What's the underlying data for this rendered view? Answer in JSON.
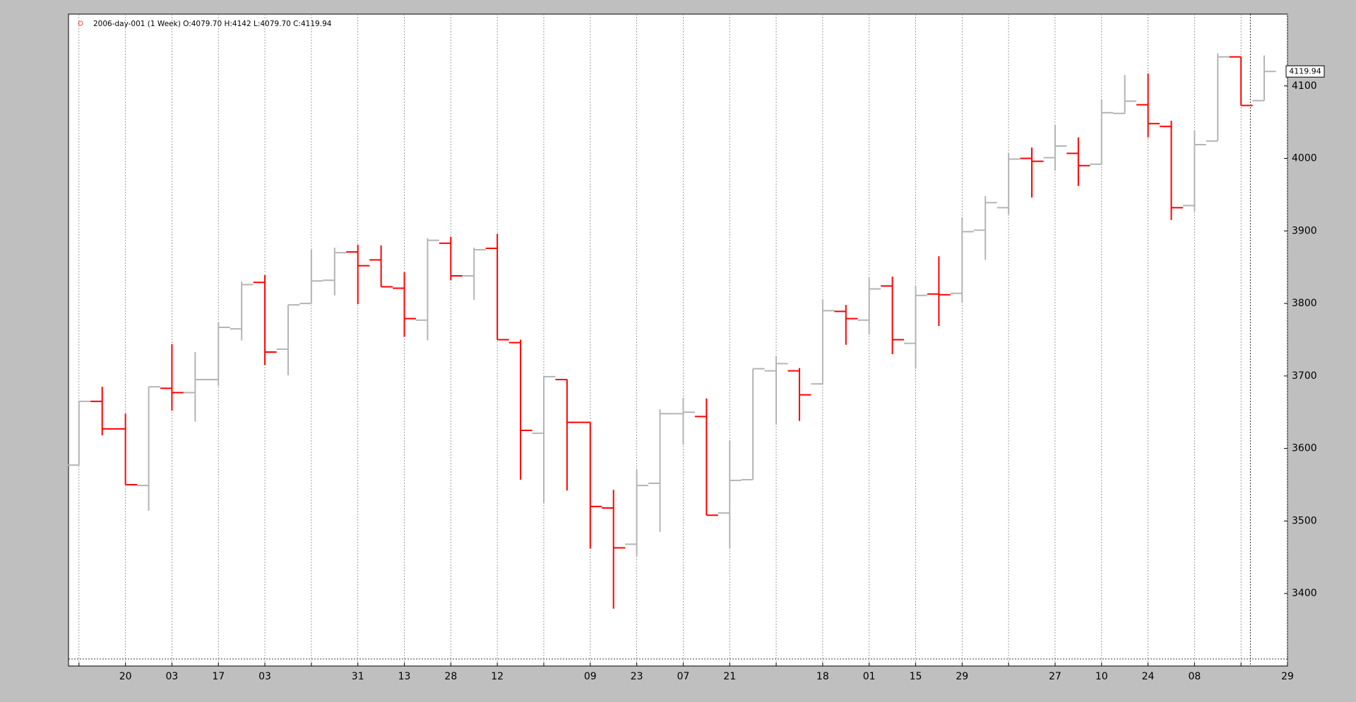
{
  "chart_data": {
    "type": "ohlc",
    "title": "2006-day-001 (1 Week) O:4079.70 H:4142 L:4079.70 C:4119.94",
    "open": [
      3577,
      3665,
      3627,
      3549,
      3683,
      3677,
      3695,
      3765,
      3829,
      3737,
      3800,
      3832,
      3871,
      3860,
      3821,
      3777,
      3883,
      3838,
      3876,
      3746,
      3621,
      3695,
      3636,
      3518,
      3468,
      3552,
      3648,
      3644,
      3511,
      3557,
      3707,
      3707,
      3689,
      3789,
      3777,
      3824,
      3745,
      3813,
      3814,
      3901,
      3932,
      4000,
      4001,
      4007,
      3992,
      4062,
      4074,
      4044,
      3935,
      4024,
      4140,
      4079.7
    ],
    "high": [
      3666,
      3685,
      3648,
      3685,
      3744,
      3733,
      3774,
      3830,
      3839,
      3798,
      3874,
      3877,
      3881,
      3880,
      3843,
      3890,
      3892,
      3877,
      3896,
      3750,
      3699,
      3695,
      3636,
      3543,
      3571,
      3654,
      3670,
      3669,
      3611,
      3710,
      3727,
      3711,
      3806,
      3798,
      3835,
      3837,
      3824,
      3865,
      3919,
      3948,
      4007,
      4015,
      4046,
      4029,
      4081,
      4115,
      4117,
      4052,
      4038,
      4145,
      4140,
      4142
    ],
    "low": [
      3577,
      3618,
      3550,
      3514,
      3652,
      3637,
      3686,
      3749,
      3715,
      3701,
      3800,
      3811,
      3799,
      3823,
      3754,
      3749,
      3832,
      3805,
      3750,
      3557,
      3525,
      3542,
      3462,
      3379,
      3452,
      3485,
      3605,
      3508,
      3462,
      3557,
      3633,
      3638,
      3689,
      3743,
      3757,
      3730,
      3710,
      3769,
      3802,
      3860,
      3923,
      3946,
      3983,
      3962,
      3992,
      4062,
      4029,
      3915,
      3927,
      4024,
      4073,
      4079.7
    ],
    "close": [
      3665,
      3627,
      3550,
      3685,
      3677,
      3695,
      3767,
      3826,
      3733,
      3798,
      3831,
      3870,
      3852,
      3823,
      3779,
      3887,
      3838,
      3874,
      3750,
      3625,
      3699,
      3636,
      3520,
      3463,
      3549,
      3648,
      3650,
      3508,
      3556,
      3710,
      3717,
      3674,
      3790,
      3779,
      3820,
      3750,
      3811,
      3812,
      3899,
      3939,
      3999,
      3996,
      4017,
      3990,
      4063,
      4079,
      4048,
      3932,
      4019,
      4140,
      4073,
      4119.94
    ],
    "up_color": "#b4b4b4",
    "down_color": "#ff0000",
    "xlim": [
      -0.45,
      52
    ],
    "xticks": [
      {
        "value": 0,
        "label": null
      },
      {
        "value": 2,
        "label": "20"
      },
      {
        "value": 4,
        "label": "03"
      },
      {
        "value": 6,
        "label": "17"
      },
      {
        "value": 8,
        "label": "03"
      },
      {
        "value": 10,
        "label": null
      },
      {
        "value": 12,
        "label": "31"
      },
      {
        "value": 14,
        "label": "13"
      },
      {
        "value": 16,
        "label": "28"
      },
      {
        "value": 18,
        "label": "12"
      },
      {
        "value": 20,
        "label": null
      },
      {
        "value": 22,
        "label": "09"
      },
      {
        "value": 24,
        "label": "23"
      },
      {
        "value": 26,
        "label": "07"
      },
      {
        "value": 28,
        "label": "21"
      },
      {
        "value": 30,
        "label": null
      },
      {
        "value": 32,
        "label": "18"
      },
      {
        "value": 34,
        "label": "01"
      },
      {
        "value": 36,
        "label": "15"
      },
      {
        "value": 38,
        "label": "29"
      },
      {
        "value": 40,
        "label": null
      },
      {
        "value": 42,
        "label": "27"
      },
      {
        "value": 44,
        "label": "10"
      },
      {
        "value": 46,
        "label": "24"
      },
      {
        "value": 48,
        "label": "08"
      },
      {
        "value": 50,
        "label": null
      },
      {
        "value": 52,
        "label": "29"
      }
    ],
    "ylim": [
      3300,
      4199
    ],
    "yticks": [
      3400,
      3500,
      3600,
      3700,
      3800,
      3900,
      4000,
      4100
    ],
    "grid": true
  }
}
